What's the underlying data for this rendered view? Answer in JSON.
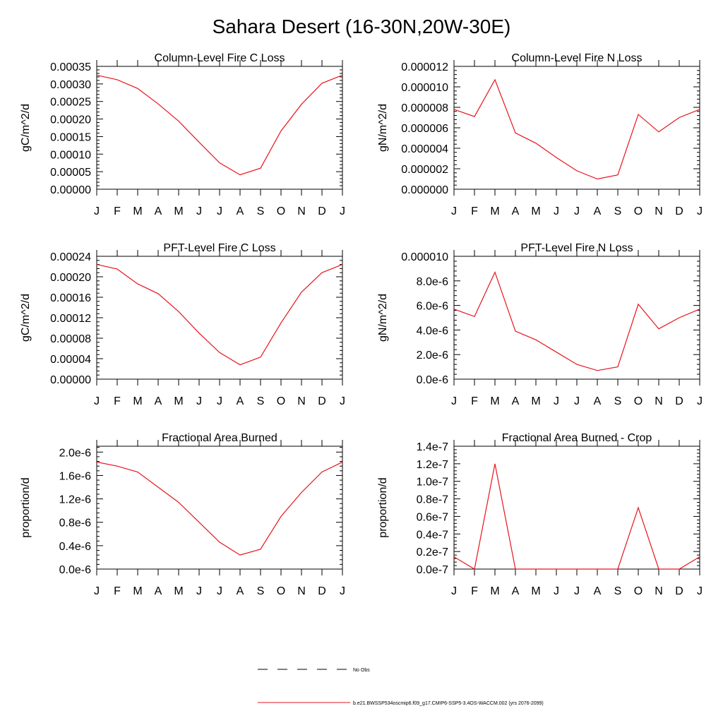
{
  "title": "Sahara Desert (16-30N,20W-30E)",
  "months": [
    "J",
    "F",
    "M",
    "A",
    "M",
    "J",
    "J",
    "A",
    "S",
    "O",
    "N",
    "D",
    "J"
  ],
  "colors": {
    "model": "#e8141c",
    "obs": "#000000"
  },
  "chart_data": [
    {
      "type": "line",
      "title": "Column-Level Fire C Loss",
      "ylabel": "gC/m^2/d",
      "ylim": [
        0,
        0.00035
      ],
      "yticks": [
        0,
        5e-05,
        0.0001,
        0.00015,
        0.0002,
        0.00025,
        0.0003,
        0.00035
      ],
      "ytick_labels": [
        "0.00000",
        "0.00005",
        "0.00010",
        "0.00015",
        "0.00020",
        "0.00025",
        "0.00030",
        "0.00035"
      ],
      "series": [
        {
          "values": [
            0.000325,
            0.000312,
            0.000287,
            0.000243,
            0.000194,
            0.000134,
            7.5e-05,
            4.1e-05,
            6e-05,
            0.000166,
            0.000242,
            0.000302,
            0.000325
          ]
        }
      ]
    },
    {
      "type": "line",
      "title": "Column-Level Fire N Loss",
      "ylabel": "gN/m^2/d",
      "ylim": [
        0,
        1.2e-05
      ],
      "yticks": [
        0,
        2e-06,
        4e-06,
        6e-06,
        8e-06,
        1e-05,
        1.2e-05
      ],
      "ytick_labels": [
        "0.000000",
        "0.000002",
        "0.000004",
        "0.000006",
        "0.000008",
        "0.000010",
        "0.000012"
      ],
      "series": [
        {
          "values": [
            7.8e-06,
            7.1e-06,
            1.07e-05,
            5.5e-06,
            4.5e-06,
            3.1e-06,
            1.8e-06,
            1e-06,
            1.4e-06,
            7.3e-06,
            5.6e-06,
            7e-06,
            7.8e-06
          ]
        }
      ]
    },
    {
      "type": "line",
      "title": "PFT-Level Fire C Loss",
      "ylabel": "gC/m^2/d",
      "ylim": [
        0,
        0.00024
      ],
      "yticks": [
        0,
        4e-05,
        8e-05,
        0.00012,
        0.00016,
        0.0002,
        0.00024
      ],
      "ytick_labels": [
        "0.00000",
        "0.00004",
        "0.00008",
        "0.00012",
        "0.00016",
        "0.00020",
        "0.00024"
      ],
      "series": [
        {
          "values": [
            0.000224,
            0.000215,
            0.000186,
            0.000167,
            0.000132,
            9e-05,
            5.2e-05,
            2.8e-05,
            4.3e-05,
            0.00011,
            0.00017,
            0.000208,
            0.000224
          ]
        }
      ]
    },
    {
      "type": "line",
      "title": "PFT-Level Fire N Loss",
      "ylabel": "gN/m^2/d",
      "ylim": [
        0,
        1e-05
      ],
      "yticks": [
        0,
        2e-06,
        4e-06,
        6e-06,
        8e-06,
        1e-05
      ],
      "ytick_labels": [
        "0.0e-6",
        "2.0e-6",
        "4.0e-6",
        "6.0e-6",
        "8.0e-6",
        "0.000010"
      ],
      "series": [
        {
          "values": [
            5.7e-06,
            5.1e-06,
            8.7e-06,
            3.9e-06,
            3.2e-06,
            2.2e-06,
            1.2e-06,
            7e-07,
            1e-06,
            6.1e-06,
            4.1e-06,
            5e-06,
            5.7e-06
          ]
        }
      ]
    },
    {
      "type": "line",
      "title": "Fractional Area Burned",
      "ylabel": "proportion/d",
      "ylim": [
        0,
        2.1e-06
      ],
      "yticks": [
        0,
        4e-07,
        8e-07,
        1.2e-06,
        1.6e-06,
        2e-06
      ],
      "ytick_labels": [
        "0.0e-6",
        "0.4e-6",
        "0.8e-6",
        "1.2e-6",
        "1.6e-6",
        "2.0e-6"
      ],
      "series": [
        {
          "values": [
            1.83e-06,
            1.76e-06,
            1.66e-06,
            1.4e-06,
            1.14e-06,
            8e-07,
            4.6e-07,
            2.4e-07,
            3.4e-07,
            9e-07,
            1.31e-06,
            1.66e-06,
            1.83e-06
          ]
        }
      ]
    },
    {
      "type": "line",
      "title": "Fractional Area Burned - Crop",
      "ylabel": "proportion/d",
      "ylim": [
        0,
        1.4e-07
      ],
      "yticks": [
        0,
        2e-08,
        4e-08,
        6e-08,
        8e-08,
        1e-07,
        1.2e-07,
        1.4e-07
      ],
      "ytick_labels": [
        "0.0e-7",
        "0.2e-7",
        "0.4e-7",
        "0.6e-7",
        "0.8e-7",
        "1.0e-7",
        "1.2e-7",
        "1.4e-7"
      ],
      "series": [
        {
          "values": [
            1.4e-08,
            0,
            1.2e-07,
            0,
            0,
            0,
            0,
            0,
            0,
            7e-08,
            0,
            0,
            1.4e-08
          ]
        }
      ]
    }
  ],
  "legend": {
    "position": "bottom-center",
    "entries": [
      {
        "label": "No Obs",
        "style": "dashed",
        "color": "#000000"
      },
      {
        "label": "b.e21.BWSSP534oscmip6.f09_g17.CMIP6-SSP5-3.4OS-WACCM.002 (yrs 2076-2099)",
        "style": "solid",
        "color": "#e8141c"
      }
    ]
  }
}
